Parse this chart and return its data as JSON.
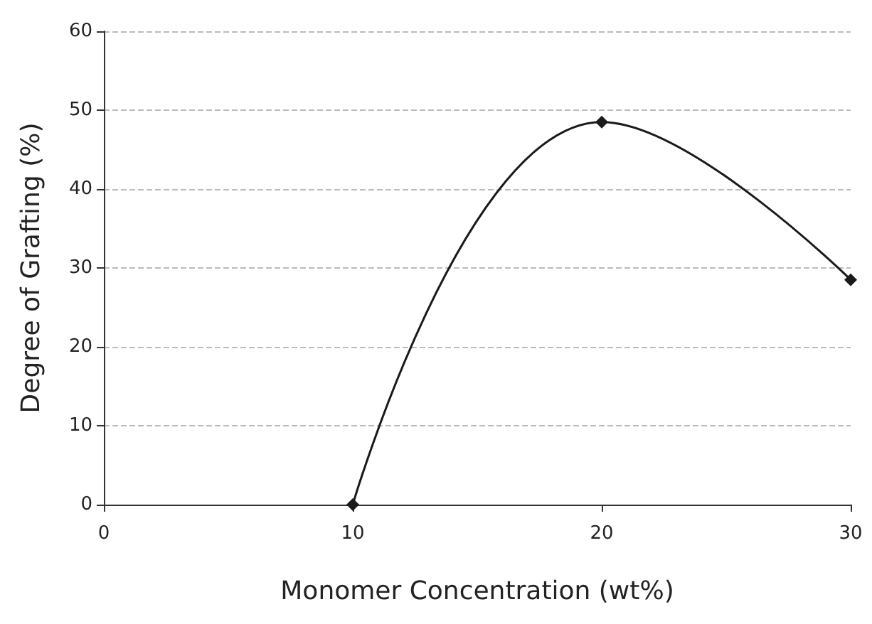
{
  "chart_data": {
    "type": "line",
    "xlabel": "Monomer Concentration (wt%)",
    "ylabel": "Degree of Grafting (%)",
    "x": [
      10,
      20,
      30
    ],
    "series": [
      {
        "color": "#1a1a1a",
        "values": [
          0,
          48.5,
          28.5
        ]
      }
    ],
    "xlim": [
      0,
      30
    ],
    "xticks": [
      0,
      10,
      20,
      30
    ],
    "ylim": [
      0,
      60
    ],
    "yticks": [
      0,
      10,
      20,
      30,
      40,
      50,
      60
    ],
    "grid": "y",
    "marker": "diamond",
    "line_style": "solid"
  }
}
